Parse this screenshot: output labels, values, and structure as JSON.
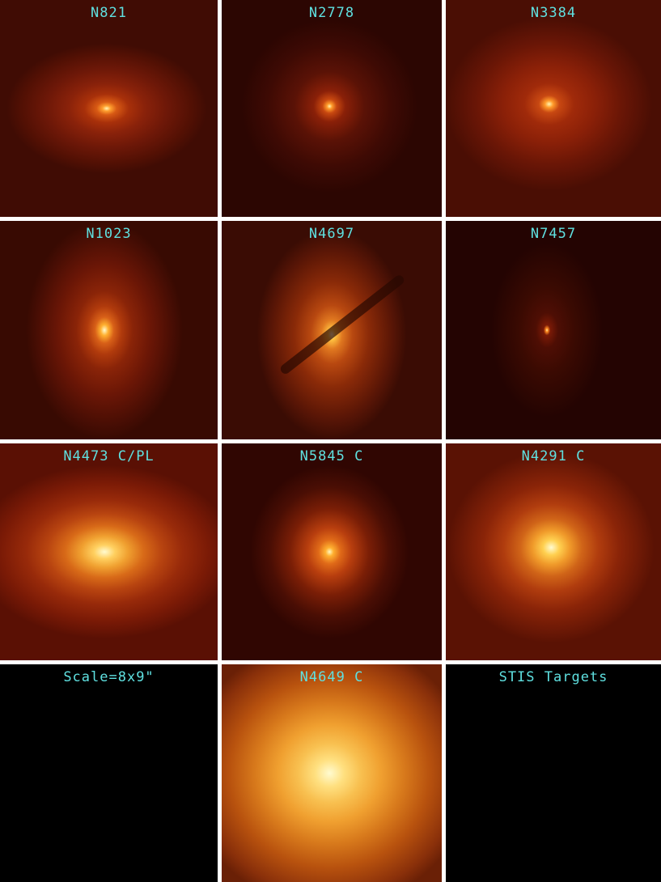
{
  "panels": [
    {
      "label": "N821"
    },
    {
      "label": "N2778"
    },
    {
      "label": "N3384"
    },
    {
      "label": "N1023"
    },
    {
      "label": "N4697"
    },
    {
      "label": "N7457"
    },
    {
      "label": "N4473 C/PL"
    },
    {
      "label": "N5845 C"
    },
    {
      "label": "N4291 C"
    },
    {
      "label": "Scale=8x9\""
    },
    {
      "label": "N4649 C"
    },
    {
      "label": "STIS Targets"
    }
  ]
}
